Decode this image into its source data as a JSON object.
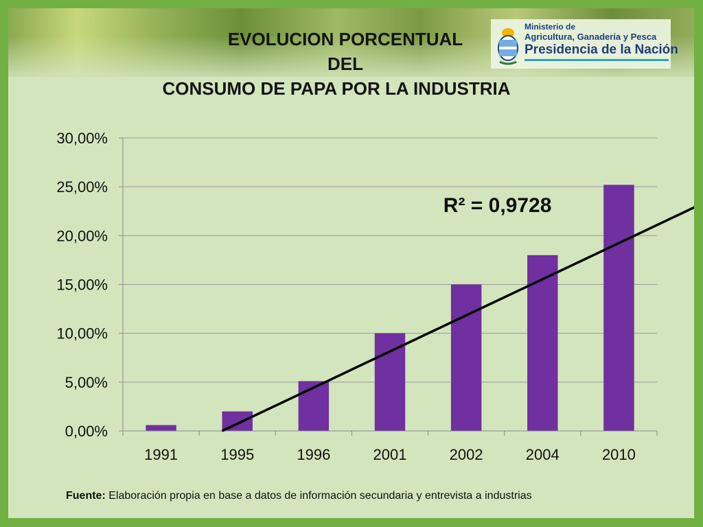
{
  "header": {
    "title_lines": [
      "EVOLUCION PORCENTUAL",
      "DEL",
      "CONSUMO DE PAPA POR LA INDUSTRIA"
    ],
    "ministry_lines": [
      "Ministerio de",
      "Agricultura, Ganadería y Pesca",
      "Presidencia de la Nación"
    ]
  },
  "colors": {
    "bar": "#7030a0",
    "trendline": "#000000",
    "frame": "#72b043",
    "background": "#d3e5bd"
  },
  "chart_data": {
    "type": "bar",
    "title": "EVOLUCION PORCENTUAL DEL CONSUMO DE PAPA POR LA INDUSTRIA",
    "categories": [
      "1991",
      "1995",
      "1996",
      "2001",
      "2002",
      "2004",
      "2010"
    ],
    "values": [
      0.6,
      2.0,
      5.1,
      10.0,
      15.0,
      18.0,
      25.2
    ],
    "value_unit": "%",
    "ylim": [
      0,
      30
    ],
    "yticks": [
      0,
      5,
      10,
      15,
      20,
      25,
      30
    ],
    "ytick_labels": [
      "0,00%",
      "5,00%",
      "10,00%",
      "15,00%",
      "20,00%",
      "25,00%",
      "30,00%"
    ],
    "grid": true,
    "trendline": {
      "type": "linear",
      "start": [
        1.3,
        0.0
      ],
      "end": [
        7.6,
        23.3
      ]
    },
    "annotation": "R² = 0,9728",
    "legend": "none"
  },
  "footer": {
    "source_label": "Fuente:",
    "source_text": " Elaboración propia en base a datos de información secundaria y entrevista a industrias"
  }
}
